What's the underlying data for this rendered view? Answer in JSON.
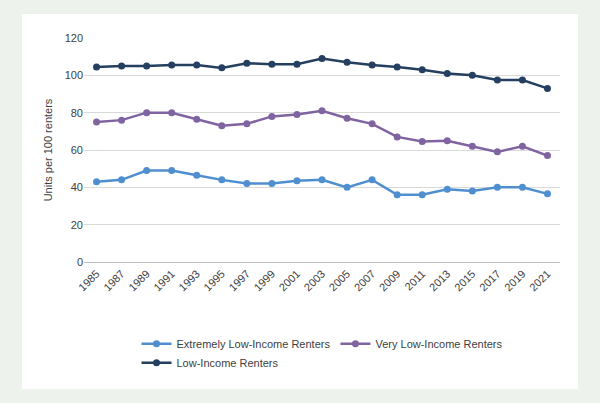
{
  "chart_data": {
    "type": "line",
    "y_label": "Units per 100 renters",
    "x": [
      1985,
      1987,
      1989,
      1991,
      1993,
      1995,
      1997,
      1999,
      2001,
      2003,
      2005,
      2007,
      2009,
      2011,
      2013,
      2015,
      2017,
      2019,
      2021
    ],
    "series": [
      {
        "name": "Extremely Low-Income Renters",
        "color": "#4f8fd0",
        "marker": "circle",
        "line_style": "solid",
        "values": [
          43,
          44,
          49,
          49,
          46.5,
          44,
          42,
          42,
          43.5,
          44,
          40,
          44,
          36,
          36,
          39,
          38,
          40,
          40,
          36.5
        ]
      },
      {
        "name": "Very Low-Income Renters",
        "color": "#8064a2",
        "marker": "circle",
        "line_style": "solid",
        "values": [
          75,
          76,
          80,
          80,
          76.5,
          73,
          74,
          78,
          79,
          81,
          77,
          74,
          67,
          64.5,
          65,
          62,
          59,
          62,
          57
        ]
      },
      {
        "name": "Low-Income Renters",
        "color": "#243f60",
        "marker": "circle",
        "line_style": "solid",
        "values": [
          104.5,
          105,
          105,
          105.5,
          105.5,
          104,
          106.5,
          106,
          106,
          109,
          107,
          105.5,
          104.5,
          103,
          101,
          100,
          97.5,
          97.5,
          93
        ]
      }
    ],
    "xlim": [
      1984,
      2022
    ],
    "xticks": [
      1985,
      1987,
      1989,
      1991,
      1993,
      1995,
      1997,
      1999,
      2001,
      2003,
      2005,
      2007,
      2009,
      2011,
      2013,
      2015,
      2017,
      2019,
      2021
    ],
    "ylim": [
      0,
      120
    ],
    "yticks": [
      0,
      20,
      40,
      60,
      80,
      100,
      120
    ],
    "grid": true,
    "legend": "bottom"
  }
}
